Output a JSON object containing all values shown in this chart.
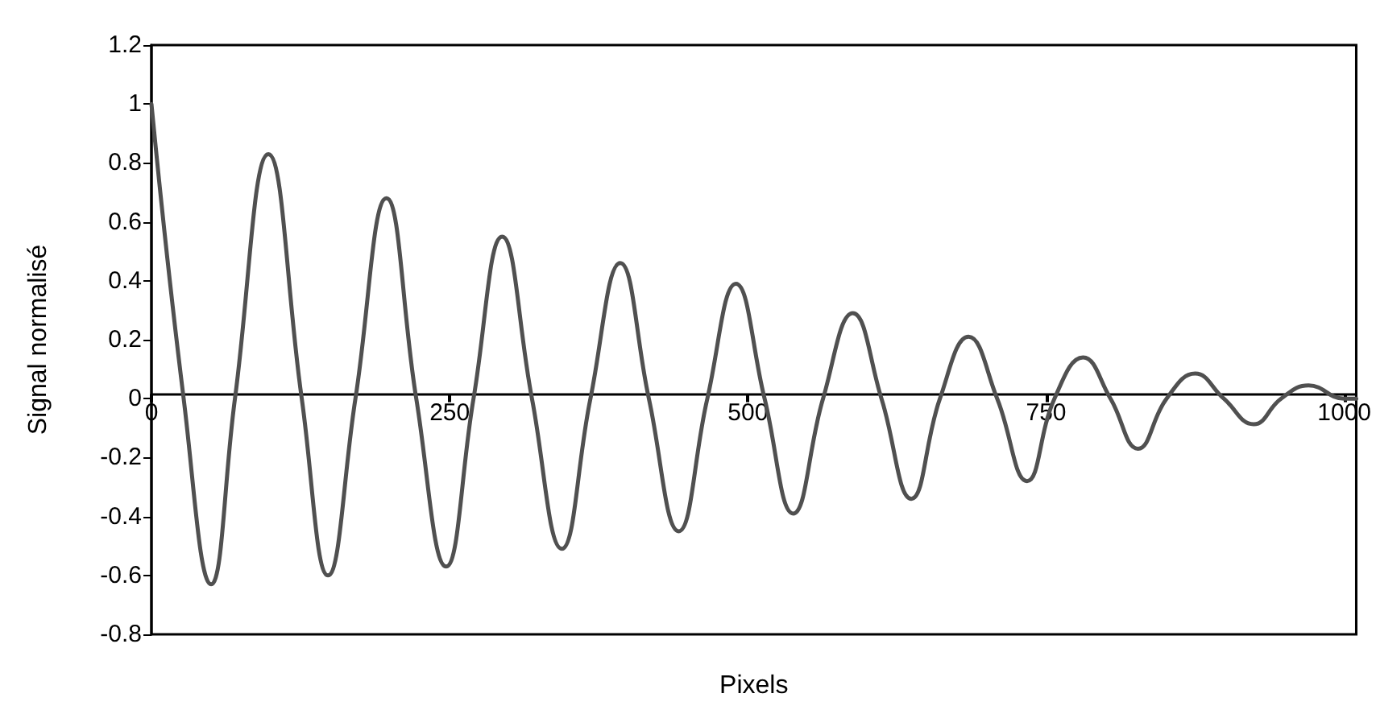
{
  "chart_data": {
    "type": "line",
    "xlabel": "Pixels",
    "ylabel": "Signal normalisé",
    "x": [
      0,
      27,
      50,
      70,
      98,
      126,
      148,
      171,
      197,
      222,
      247,
      270,
      294,
      319,
      344,
      368,
      393,
      417,
      442,
      466,
      490,
      514,
      538,
      563,
      588,
      612,
      637,
      661,
      685,
      709,
      734,
      757,
      781,
      804,
      827,
      851,
      875,
      899,
      924,
      947,
      970,
      1000,
      1010
    ],
    "series": [
      {
        "color": "#505050",
        "values": [
          1,
          0,
          -0.63,
          0,
          0.83,
          0,
          -0.6,
          0,
          0.68,
          0,
          -0.57,
          0,
          0.55,
          0,
          -0.51,
          0,
          0.46,
          0,
          -0.45,
          0,
          0.39,
          0,
          -0.39,
          0,
          0.29,
          0,
          -0.34,
          0,
          0.21,
          0,
          -0.28,
          0,
          0.14,
          0,
          -0.17,
          0,
          0.085,
          0,
          -0.087,
          0,
          0.045,
          0,
          0
        ]
      }
    ],
    "xlim": [
      0,
      1010
    ],
    "xticks": [
      0,
      250,
      500,
      750,
      1000
    ],
    "ylim": [
      -0.8,
      1.2
    ],
    "yticks": [
      -0.8,
      -0.6,
      -0.4,
      -0.2,
      0,
      0.2,
      0.4,
      0.6,
      0.8,
      1,
      1.2
    ],
    "grid": false,
    "marker": "none",
    "line_style": "solid"
  }
}
